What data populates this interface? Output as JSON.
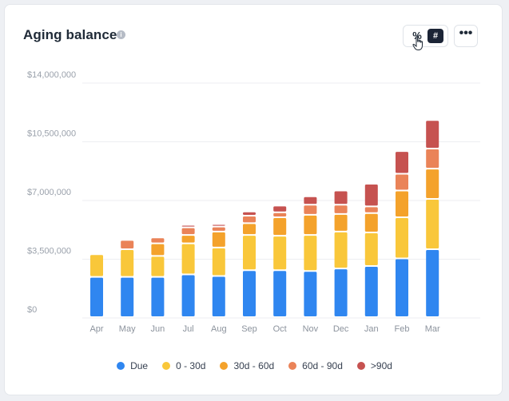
{
  "card": {
    "title": "Aging balance",
    "info_icon": "i",
    "percent_label": "%",
    "count_label": "#",
    "more_label": "•••"
  },
  "colors": {
    "Due": "#2f86f0",
    "0 - 30d": "#f9c73a",
    "30d - 60d": "#f4a22b",
    "60d - 90d": "#ea8358",
    ">90d": "#c65250"
  },
  "chart_data": {
    "type": "bar",
    "stacked": true,
    "title": "Aging balance",
    "xlabel": "",
    "ylabel": "",
    "ylim": [
      0,
      14000000
    ],
    "yticks": [
      0,
      3500000,
      7000000,
      10500000,
      14000000
    ],
    "ytick_labels": [
      "$0",
      "$3,500,000",
      "$7,000,000",
      "$10,500,000",
      "$14,000,000"
    ],
    "grid": true,
    "legend_position": "bottom",
    "categories": [
      "Apr",
      "May",
      "Jun",
      "Jul",
      "Aug",
      "Sep",
      "Oct",
      "Nov",
      "Dec",
      "Jan",
      "Feb",
      "Mar"
    ],
    "series": [
      {
        "name": "Due",
        "values": [
          2400000,
          2400000,
          2400000,
          2550000,
          2450000,
          2800000,
          2800000,
          2750000,
          2900000,
          3050000,
          3500000,
          4050000
        ]
      },
      {
        "name": "0 - 30d",
        "values": [
          1350000,
          1650000,
          1250000,
          1850000,
          1700000,
          2100000,
          2050000,
          2150000,
          2200000,
          2000000,
          2450000,
          3000000
        ]
      },
      {
        "name": "30d - 60d",
        "values": [
          0,
          0,
          750000,
          500000,
          950000,
          700000,
          1100000,
          1200000,
          1050000,
          1150000,
          1600000,
          1800000
        ]
      },
      {
        "name": "60d - 90d",
        "values": [
          0,
          550000,
          350000,
          450000,
          300000,
          450000,
          300000,
          600000,
          550000,
          400000,
          1000000,
          1200000
        ]
      },
      {
        "name": ">90d",
        "values": [
          0,
          0,
          0,
          150000,
          150000,
          250000,
          400000,
          500000,
          850000,
          1350000,
          1350000,
          1700000
        ]
      }
    ]
  }
}
